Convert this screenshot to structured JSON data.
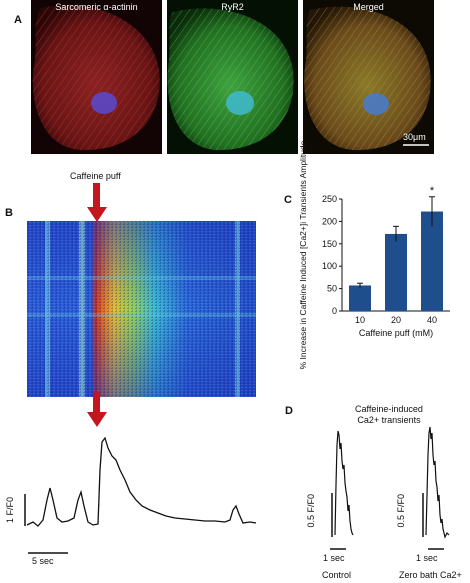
{
  "panel_a": {
    "letter": "A",
    "images": [
      {
        "label": "Sarcomeric α-actinin",
        "color": "red"
      },
      {
        "label": "RyR2",
        "color": "green"
      },
      {
        "label": "Merged",
        "color": "merged"
      }
    ],
    "scale_bar": "30μm"
  },
  "panel_b": {
    "letter": "B",
    "arrow_label": "Caffeine puff",
    "trace_y_label": "1 F/F0",
    "trace_scale_label": "5 sec"
  },
  "panel_c": {
    "letter": "C",
    "significance_mark": "*"
  },
  "panel_d": {
    "letter": "D",
    "title_line1": "Caffeine-induced",
    "title_line2": "Ca2+ transients",
    "traces": [
      {
        "label": "Control",
        "y_label": "0.5 F/F0",
        "scale_label": "1 sec"
      },
      {
        "label": "Zero bath Ca2+",
        "y_label": "0.5 F/F0",
        "scale_label": "1 sec"
      }
    ]
  },
  "chart_data": {
    "type": "bar",
    "categories": [
      "10",
      "20",
      "40"
    ],
    "values": [
      57,
      172,
      222
    ],
    "errors": [
      5,
      17,
      33
    ],
    "ylabel": "% Increase in Caffeine Induced [Ca2+]i Transients Amplitude",
    "xlabel": "Caffeine puff (mM)",
    "ylim": [
      0,
      250
    ],
    "yticks": [
      0,
      50,
      100,
      150,
      200,
      250
    ],
    "bar_color": "#1f4e8c"
  }
}
